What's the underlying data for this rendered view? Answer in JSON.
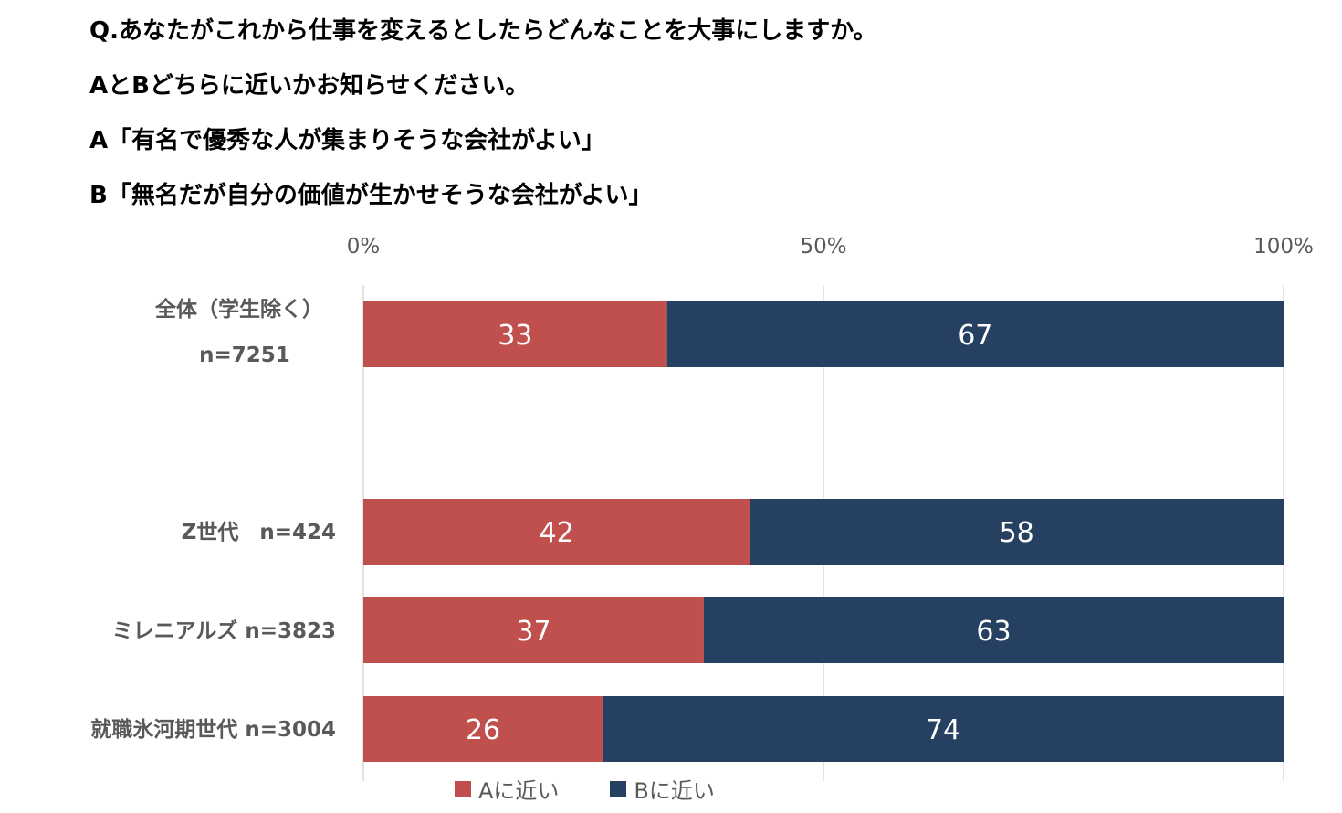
{
  "question": {
    "line1": "Q.あなたがこれから仕事を変えるとしたらどんなことを大事にしますか。",
    "line2": "AとBどちらに近いかお知らせください。",
    "line3": "A「有名で優秀な人が集まりそうな会社がよい」",
    "line4": "B「無名だが自分の価値が生かせそうな会社がよい」"
  },
  "chart_data": {
    "type": "bar",
    "orientation": "horizontal",
    "stacked": true,
    "xlim": [
      0,
      100
    ],
    "xticks": [
      "0%",
      "50%",
      "100%"
    ],
    "grid": true,
    "legend_position": "bottom",
    "categories": [
      [
        "全体（学生除く）",
        "n=7251"
      ],
      [
        "Z世代　n=424"
      ],
      [
        "ミレニアルズ n=3823"
      ],
      [
        "就職氷河期世代 n=3004"
      ]
    ],
    "series": [
      {
        "name": "Aに近い",
        "color": "#C0504D",
        "values": [
          33,
          42,
          37,
          26
        ]
      },
      {
        "name": "Bに近い",
        "color": "#264061",
        "values": [
          67,
          58,
          63,
          74
        ]
      }
    ]
  }
}
